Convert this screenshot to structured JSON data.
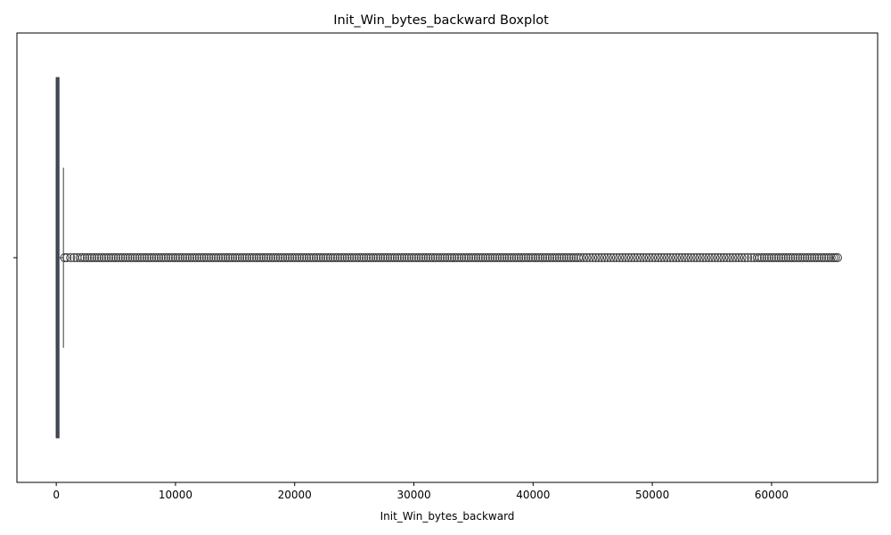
{
  "chart_data": {
    "type": "boxplot",
    "title": "Init_Win_bytes_backward Boxplot",
    "xlabel": "Init_Win_bytes_backward",
    "ylabel": "",
    "orientation": "horizontal",
    "xlim": [
      -3300,
      68900
    ],
    "x_ticks": [
      0,
      10000,
      20000,
      30000,
      40000,
      50000,
      60000
    ],
    "x_tick_labels": [
      "0",
      "10000",
      "20000",
      "30000",
      "40000",
      "50000",
      "60000"
    ],
    "box": {
      "q1": 0,
      "median": 0,
      "q3": 230,
      "whisker_low": -1,
      "whisker_high": 600
    },
    "outliers_range": [
      600,
      65535
    ],
    "outlier_sample": [
      700,
      900,
      1200,
      1500,
      2000,
      3000,
      4000,
      5000,
      6000,
      7000,
      8000,
      9000,
      10000,
      11000,
      12000,
      13000,
      14000,
      15000,
      16000,
      17000,
      18000,
      19000,
      20000,
      21000,
      22000,
      23000,
      24000,
      25000,
      26000,
      27000,
      28000,
      29000,
      29200,
      30000,
      31000,
      32000,
      33000,
      34000,
      35000,
      36000,
      37000,
      38000,
      39000,
      40000,
      41000,
      42000,
      43000,
      44000,
      44500,
      45000,
      45500,
      46000,
      46500,
      47000,
      47500,
      48000,
      48500,
      49000,
      49500,
      50000,
      50500,
      51000,
      51500,
      52000,
      52500,
      53000,
      53500,
      54000,
      54500,
      55000,
      55500,
      56000,
      56500,
      57000,
      57500,
      58000,
      58300,
      58800,
      59200,
      59600,
      60000,
      60400,
      60800,
      61200,
      61600,
      62000,
      62400,
      62800,
      63200,
      63600,
      64000,
      64400,
      64800,
      65200,
      65535
    ],
    "colors": {
      "box_fill": "#3b4e63",
      "box_edge": "#3b3b3b",
      "outlier_edge": "#3b3b3b",
      "axis": "#000000"
    }
  }
}
